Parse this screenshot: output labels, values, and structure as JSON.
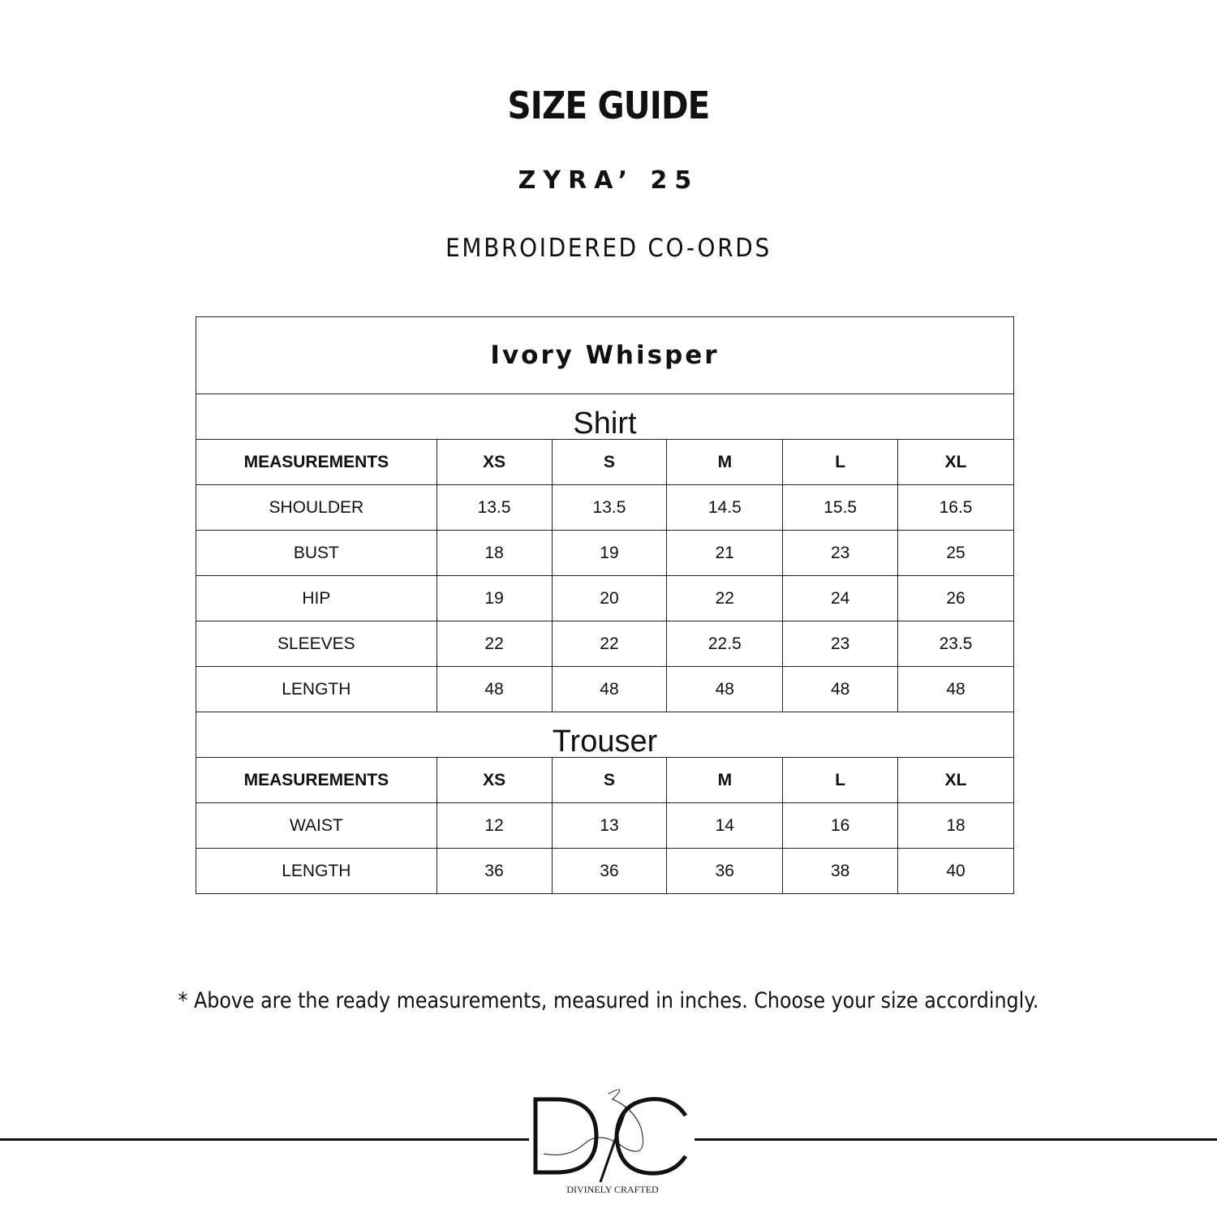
{
  "title": "SIZE GUIDE",
  "collection": "ZYRA’ 25",
  "category": "EMBROIDERED CO-ORDS",
  "product": "Ivory Whisper",
  "sections": [
    {
      "name": "Shirt",
      "headers": [
        "MEASUREMENTS",
        "XS",
        "S",
        "M",
        "L",
        "XL"
      ],
      "rows": [
        [
          "SHOULDER",
          "13.5",
          "13.5",
          "14.5",
          "15.5",
          "16.5"
        ],
        [
          "BUST",
          "18",
          "19",
          "21",
          "23",
          "25"
        ],
        [
          "HIP",
          "19",
          "20",
          "22",
          "24",
          "26"
        ],
        [
          "SLEEVES",
          "22",
          "22",
          "22.5",
          "23",
          "23.5"
        ],
        [
          "LENGTH",
          "48",
          "48",
          "48",
          "48",
          "48"
        ]
      ]
    },
    {
      "name": "Trouser",
      "headers": [
        "MEASUREMENTS",
        "XS",
        "S",
        "M",
        "L",
        "XL"
      ],
      "rows": [
        [
          "WAIST",
          "12",
          "13",
          "14",
          "16",
          "18"
        ],
        [
          "LENGTH",
          "36",
          "36",
          "36",
          "38",
          "40"
        ]
      ]
    }
  ],
  "note": "*  Above are the ready measurements, measured in inches. Choose your size accordingly.",
  "logo": {
    "monogram": "D/C",
    "tagline": "DIVINELY CRAFTED"
  }
}
